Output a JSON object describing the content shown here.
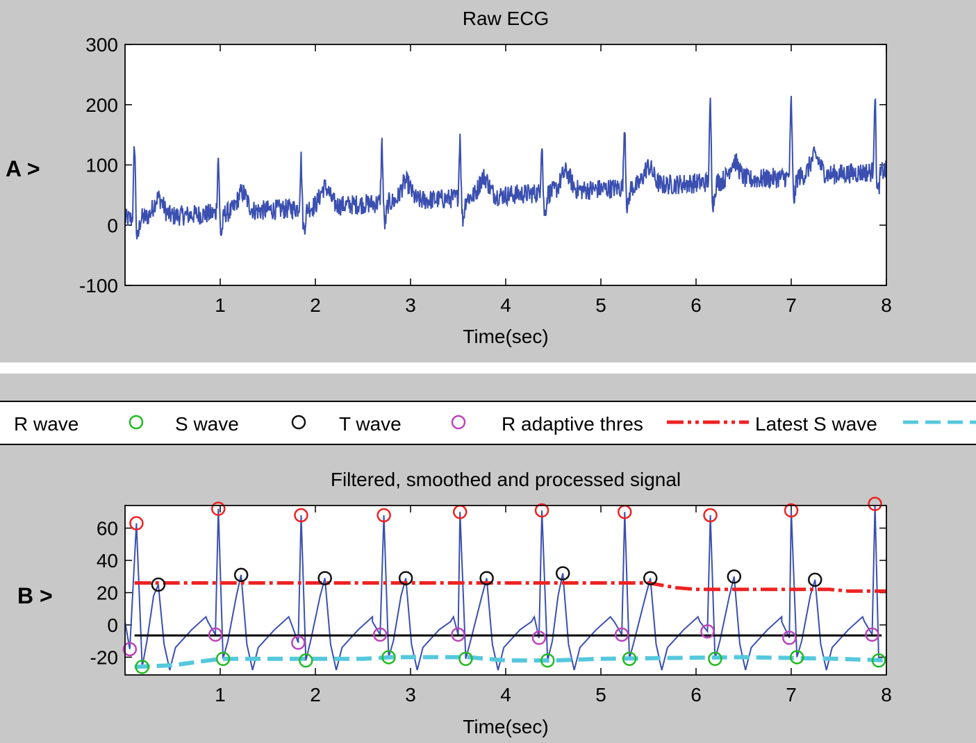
{
  "panel_a_tag": "A >",
  "panel_b_tag": "B >",
  "legend": {
    "items": [
      {
        "label": "R wave",
        "marker": "circle",
        "color": "#22bb22"
      },
      {
        "label": "S wave",
        "marker": "circle",
        "color": "#111111"
      },
      {
        "label": "T wave",
        "marker": "circle",
        "color": "#bb44bb"
      },
      {
        "label": "R adaptive thres",
        "marker": "dashdot",
        "color": "#ee2222"
      },
      {
        "label": "Latest S wave",
        "marker": "dashed",
        "color": "#55c8dd"
      }
    ]
  },
  "chart_data": [
    {
      "type": "line",
      "title": "Raw ECG",
      "xlabel": "Time(sec)",
      "ylabel": "",
      "xlim": [
        0,
        8
      ],
      "ylim": [
        -100,
        300
      ],
      "xticks": [
        "1",
        "2",
        "3",
        "4",
        "5",
        "6",
        "7",
        "8"
      ],
      "yticks": [
        "300",
        "200",
        "100",
        "0",
        "-100"
      ],
      "line_color": "#3a4fb0",
      "duration_sec": 8,
      "beat_times": [
        0.1,
        0.98,
        1.85,
        2.7,
        3.52,
        4.38,
        5.25,
        6.15,
        7.0,
        7.88
      ],
      "r_peak_values": [
        140,
        118,
        115,
        140,
        155,
        145,
        175,
        205,
        210,
        220
      ],
      "baseline_start": 10,
      "baseline_end": 90
    },
    {
      "type": "line",
      "title": "Filtered, smoothed and processed signal",
      "xlabel": "Time(sec)",
      "ylabel": "",
      "xlim": [
        0,
        8
      ],
      "ylim": [
        -31,
        74
      ],
      "xticks": [
        "1",
        "2",
        "3",
        "4",
        "5",
        "6",
        "7",
        "8"
      ],
      "yticks": [
        "60",
        "40",
        "20",
        "0",
        "-20"
      ],
      "line_color": "#3a4fb0",
      "r_waves": [
        [
          0.12,
          63
        ],
        [
          0.98,
          72
        ],
        [
          1.85,
          68
        ],
        [
          2.72,
          68
        ],
        [
          3.52,
          70
        ],
        [
          4.38,
          71
        ],
        [
          5.25,
          70
        ],
        [
          6.15,
          68
        ],
        [
          7.0,
          71
        ],
        [
          7.88,
          75
        ]
      ],
      "t_waves": [
        [
          0.35,
          25
        ],
        [
          1.22,
          31
        ],
        [
          2.1,
          29
        ],
        [
          2.95,
          29
        ],
        [
          3.8,
          29
        ],
        [
          4.6,
          32
        ],
        [
          5.52,
          29
        ],
        [
          6.4,
          30
        ],
        [
          7.25,
          28
        ]
      ],
      "s_waves": [
        [
          0.18,
          -26
        ],
        [
          1.03,
          -21
        ],
        [
          1.9,
          -22
        ],
        [
          2.77,
          -20
        ],
        [
          3.58,
          -21
        ],
        [
          4.44,
          -22
        ],
        [
          5.3,
          -21
        ],
        [
          6.2,
          -21
        ],
        [
          7.06,
          -20
        ],
        [
          7.92,
          -22
        ]
      ],
      "q_points": [
        [
          0.05,
          -15
        ],
        [
          0.95,
          -6
        ],
        [
          1.82,
          -11
        ],
        [
          2.68,
          -6
        ],
        [
          3.5,
          -6
        ],
        [
          4.35,
          -8
        ],
        [
          5.22,
          -6
        ],
        [
          6.12,
          -4
        ],
        [
          6.98,
          -8
        ],
        [
          7.85,
          -6
        ]
      ],
      "adaptive_threshold": [
        [
          0,
          26
        ],
        [
          5.5,
          26
        ],
        [
          5.8,
          23
        ],
        [
          6.0,
          22
        ],
        [
          7.4,
          22
        ],
        [
          7.6,
          21
        ],
        [
          8,
          21
        ]
      ],
      "latest_s_wave": [
        [
          0,
          -26
        ],
        [
          0.5,
          -25
        ],
        [
          1.0,
          -21
        ],
        [
          2.5,
          -21
        ],
        [
          2.8,
          -20
        ],
        [
          3.6,
          -20
        ],
        [
          4.0,
          -22
        ],
        [
          4.5,
          -22
        ],
        [
          5.0,
          -21
        ],
        [
          6.5,
          -20
        ],
        [
          7.5,
          -21
        ],
        [
          8,
          -22
        ]
      ],
      "zero_line_y": -6.5
    }
  ]
}
